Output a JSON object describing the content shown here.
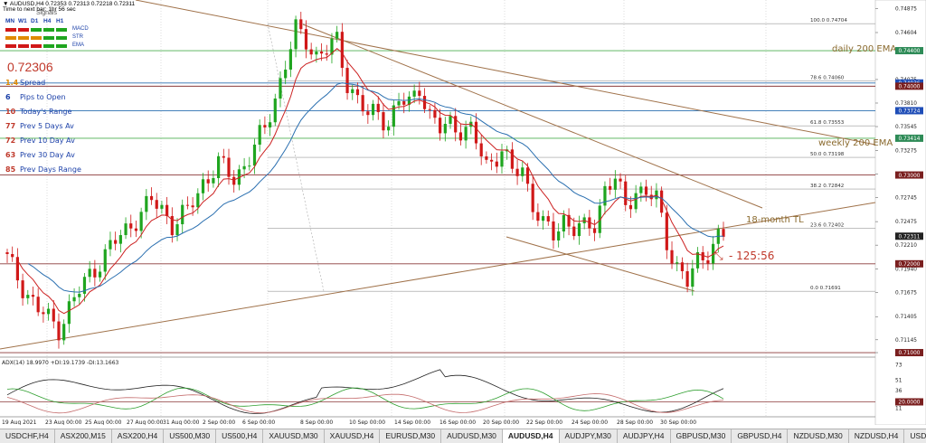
{
  "header": {
    "symbol_line": "▼ AUDUSD,H4  0.72353 0.72313 0.72218 0.72311",
    "sub_line": "Time to next bar: 1hr 56 sec",
    "signals_title": "Signals",
    "timeframes": [
      "MN",
      "W1",
      "D1",
      "H4",
      "H1"
    ],
    "indicators": [
      "MACD",
      "STR",
      "EMA"
    ]
  },
  "price_big": "0.72306",
  "info_panel": [
    {
      "num": "1.4",
      "label": "Spread",
      "color": "#e08a00"
    },
    {
      "num": "6",
      "label": "Pips to Open",
      "color": "#1a3fa8"
    },
    {
      "num": "10",
      "label": "Today's Range",
      "color": "#c0392b"
    },
    {
      "num": "77",
      "label": "Prev 5 Days Av",
      "color": "#c0392b"
    },
    {
      "num": "72",
      "label": "Prev 10 Day Av",
      "color": "#c0392b"
    },
    {
      "num": "63",
      "label": "Prev 30 Day Av",
      "color": "#c0392b"
    },
    {
      "num": "85",
      "label": "Prev Days Range",
      "color": "#c0392b"
    }
  ],
  "annotations": {
    "daily_ema": "daily 200 EMA",
    "weekly_ema": "weekly 200 EMA",
    "tl_18m": "18-month TL",
    "countdown": "125:56"
  },
  "fib_levels": [
    {
      "label": "100.0  0.74704",
      "price": 0.74704
    },
    {
      "label": "78.6  0.74060",
      "price": 0.7406
    },
    {
      "label": "61.8  0.73553",
      "price": 0.73553
    },
    {
      "label": "50.0  0.73198",
      "price": 0.73198
    },
    {
      "label": "38.2  0.72842",
      "price": 0.72842
    },
    {
      "label": "23.6  0.72402",
      "price": 0.72402
    },
    {
      "label": "0.0  0.71691",
      "price": 0.71691
    }
  ],
  "price_axis": [
    "0.74875",
    "0.74604",
    "0.74075",
    "0.73810",
    "0.73545",
    "0.73275",
    "0.73010",
    "0.72745",
    "0.72475",
    "0.72210",
    "0.71940",
    "0.71675",
    "0.71405",
    "0.71145",
    "0.71000"
  ],
  "price_tags": [
    {
      "text": "0.74400",
      "bg": "#2e8b57",
      "price": 0.744
    },
    {
      "text": "0.74036",
      "bg": "#1e4db7",
      "price": 0.74036
    },
    {
      "text": "0.74000",
      "bg": "#7a1f1f",
      "price": 0.74
    },
    {
      "text": "0.73724",
      "bg": "#1e4db7",
      "price": 0.73724
    },
    {
      "text": "0.73414",
      "bg": "#2e8b57",
      "price": 0.73414
    },
    {
      "text": "0.73000",
      "bg": "#7a1f1f",
      "price": 0.73
    },
    {
      "text": "0.72311",
      "bg": "#222222",
      "price": 0.72311
    },
    {
      "text": "0.72000",
      "bg": "#7a1f1f",
      "price": 0.72
    },
    {
      "text": "0.71000",
      "bg": "#7a1f1f",
      "price": 0.71
    }
  ],
  "adx": {
    "label": "ADX(14) 18.9970 +DI:19.1739 -DI:13.1663",
    "axis": [
      "73",
      "51",
      "36",
      "20.0000",
      "11"
    ]
  },
  "time_axis": [
    "19 Aug 2021",
    "23 Aug 00:00",
    "25 Aug 00:00",
    "27 Aug 00:00",
    "31 Aug 00:00",
    "2 Sep 00:00",
    "6 Sep 00:00",
    "8 Sep 00:00",
    "10 Sep 00:00",
    "14 Sep 00:00",
    "16 Sep 00:00",
    "20 Sep 00:00",
    "22 Sep 00:00",
    "24 Sep 00:00",
    "28 Sep 00:00",
    "30 Sep 00:00"
  ],
  "tabs": [
    "USDCHF,H4",
    "ASX200,M15",
    "ASX200,H4",
    "US500,M30",
    "US500,H4",
    "XAUUSD,M30",
    "XAUUSD,H4",
    "EURUSD,M30",
    "AUDUSD,M30",
    "AUDUSD,H4",
    "AUDJPY,M30",
    "AUDJPY,H4",
    "GBPUSD,M30",
    "GBPUSD,H4",
    "NZDUSD,M30",
    "NZDUSD,H4",
    "USD"
  ],
  "active_tab": "AUDUSD,H4",
  "colors": {
    "bull": "#1fa51f",
    "bear": "#d01818",
    "ema_fast": "#cc2222",
    "ema_slow": "#2a6fb0",
    "trendline": "#a0724a"
  },
  "chart_data": {
    "type": "candlestick",
    "symbol": "AUDUSD",
    "timeframe": "H4",
    "close_path": [
      [
        0,
        0.7205
      ],
      [
        3,
        0.7175
      ],
      [
        6,
        0.7148
      ],
      [
        10,
        0.7128
      ],
      [
        12,
        0.715
      ],
      [
        16,
        0.7188
      ],
      [
        20,
        0.7218
      ],
      [
        24,
        0.7245
      ],
      [
        28,
        0.727
      ],
      [
        30,
        0.7262
      ],
      [
        32,
        0.7245
      ],
      [
        35,
        0.7258
      ],
      [
        38,
        0.7292
      ],
      [
        41,
        0.7312
      ],
      [
        44,
        0.7296
      ],
      [
        47,
        0.732
      ],
      [
        50,
        0.7352
      ],
      [
        52,
        0.7388
      ],
      [
        54,
        0.7425
      ],
      [
        56,
        0.7462
      ],
      [
        58,
        0.7452
      ],
      [
        60,
        0.7435
      ],
      [
        62,
        0.744
      ],
      [
        64,
        0.745
      ],
      [
        66,
        0.7405
      ],
      [
        68,
        0.7385
      ],
      [
        70,
        0.7365
      ],
      [
        72,
        0.7372
      ],
      [
        74,
        0.7358
      ],
      [
        76,
        0.7382
      ],
      [
        78,
        0.738
      ],
      [
        80,
        0.7402
      ],
      [
        82,
        0.7365
      ],
      [
        84,
        0.735
      ],
      [
        86,
        0.736
      ],
      [
        88,
        0.7352
      ],
      [
        90,
        0.7348
      ],
      [
        93,
        0.7312
      ],
      [
        96,
        0.7328
      ],
      [
        98,
        0.7302
      ],
      [
        100,
        0.7308
      ],
      [
        102,
        0.7268
      ],
      [
        104,
        0.7242
      ],
      [
        106,
        0.7232
      ],
      [
        108,
        0.7252
      ],
      [
        110,
        0.724
      ],
      [
        112,
        0.7238
      ],
      [
        114,
        0.7245
      ],
      [
        116,
        0.7286
      ],
      [
        118,
        0.7295
      ],
      [
        120,
        0.7262
      ],
      [
        122,
        0.7285
      ],
      [
        124,
        0.728
      ],
      [
        126,
        0.7272
      ],
      [
        128,
        0.7225
      ],
      [
        130,
        0.7198
      ],
      [
        132,
        0.7178
      ],
      [
        134,
        0.7202
      ],
      [
        136,
        0.7215
      ],
      [
        138,
        0.7231
      ]
    ]
  }
}
